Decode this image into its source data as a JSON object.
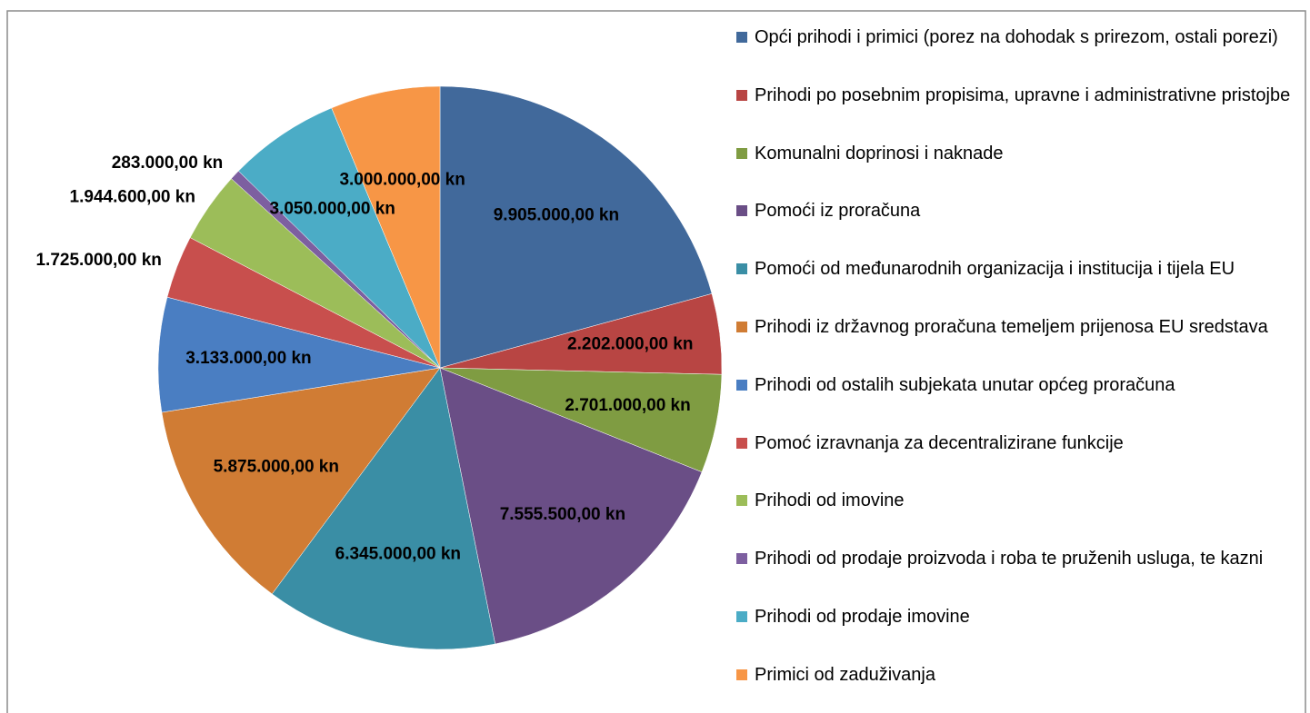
{
  "chart_data": {
    "type": "pie",
    "categories": [
      "Opći prihodi i primici (porez na dohodak s prirezom, ostali porezi)",
      "Prihodi po posebnim propisima, upravne i administrativne pristojbe",
      "Komunalni doprinosi i naknade",
      "Pomoći iz proračuna",
      "Pomoći od međunarodnih organizacija i institucija i tijela EU",
      "Prihodi iz državnog proračuna temeljem prijenosa EU sredstava",
      "Prihodi od ostalih subjekata unutar općeg proračuna",
      "Pomoć izravnanja za decentralizirane funkcije",
      "Prihodi od imovine",
      "Prihodi od prodaje proizvoda i roba te pruženih usluga, te kazni",
      "Prihodi od prodaje imovine",
      "Primici od zaduživanja"
    ],
    "values": [
      9905000,
      2202000,
      2701000,
      7555500,
      6345000,
      5875000,
      3133000,
      1725000,
      1944600,
      283000,
      3050000,
      3000000
    ],
    "value_labels": [
      "9.905.000,00 kn",
      "2.202.000,00 kn",
      "2.701.000,00 kn",
      "7.555.500,00 kn",
      "6.345.000,00 kn",
      "5.875.000,00 kn",
      "3.133.000,00 kn",
      "1.725.000,00 kn",
      "1.944.600,00 kn",
      "283.000,00 kn",
      "3.050.000,00 kn",
      "3.000.000,00 kn"
    ],
    "colors": [
      "#41699b",
      "#b84543",
      "#7f9c42",
      "#6a4e86",
      "#3a8ea5",
      "#d07c34",
      "#4a7ec2",
      "#c84f4d",
      "#9cbd59",
      "#7d5fa0",
      "#4bacc6",
      "#f79646"
    ],
    "legend": "right"
  }
}
